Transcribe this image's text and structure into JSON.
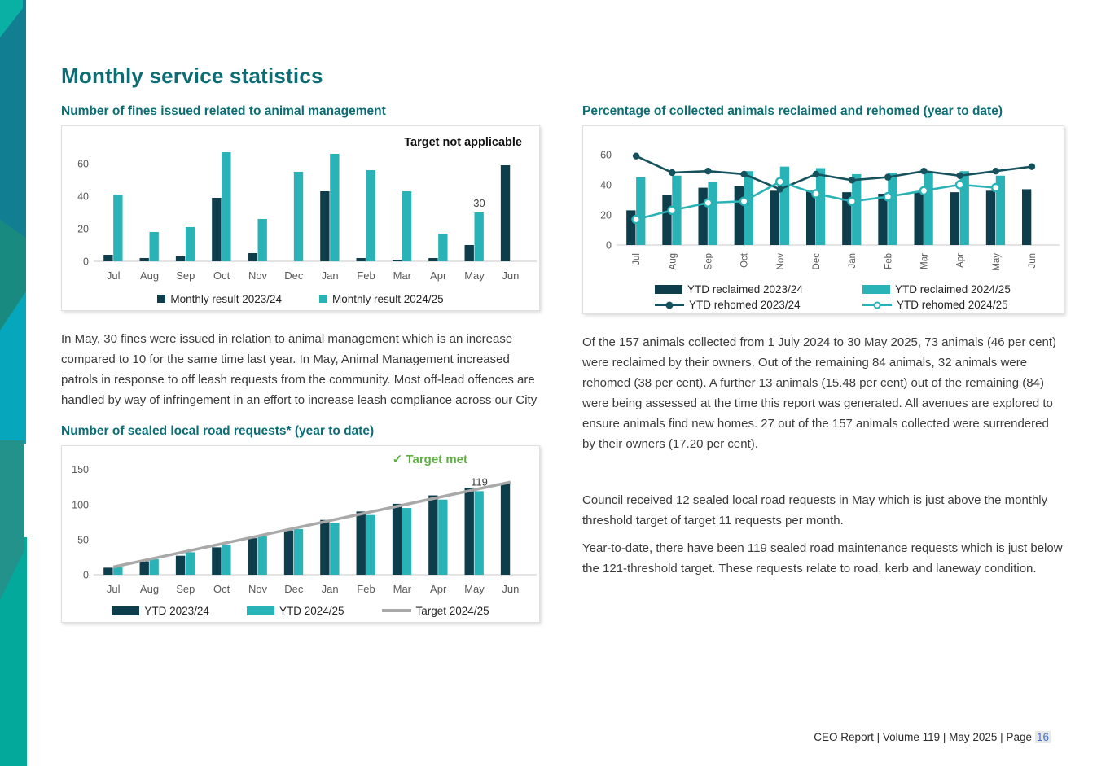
{
  "page": {
    "title": "Monthly service statistics",
    "footer": {
      "prefix": "CEO Report | Volume 119 | May 2025 | Page",
      "page_number": "16"
    }
  },
  "theme": {
    "dark": "#0E3E4B",
    "teal": "#2AB3B7",
    "dark_line": "#15525E",
    "gray_line": "#A9A9A9",
    "heading": "#0C6D75",
    "green": "#5DAF3F",
    "tick_text": "#595959",
    "body_text": "#3B3B3B",
    "page_number_color": "#4472C4"
  },
  "paragraphs": {
    "fines": "In May, 30 fines were issued in relation to animal management which is an increase compared to 10 for the same time last year. In May, Animal Management increased patrols in response to off leash requests from the community. Most off-lead offences are handled by way of infringement in an effort to increase leash compliance across our City",
    "animals": "Of the 157 animals collected from 1 July 2024 to 30 May 2025, 73 animals (46 per cent) were reclaimed by their owners. Out of the remaining 84 animals, 32 animals were rehomed (38 per cent). A further 13 animals (15.48 per cent) out of the remaining (84) were being assessed at the time this report was generated. All avenues are explored to ensure animals find new homes. 27 out of the 157 animals collected were surrendered by their owners (17.20 per cent).",
    "roads_1": "Council received 12 sealed local road requests in May which is just above the monthly threshold target of target 11 requests per month.",
    "roads_2": "Year-to-date, there have been 119 sealed road maintenance requests which is just below the 121-threshold target. These requests relate to road, kerb and laneway condition."
  },
  "chart_data": [
    {
      "id": "fines",
      "type": "bar",
      "title": "Number of fines issued related to animal management",
      "annotation": "Target not applicable",
      "categories": [
        "Jul",
        "Aug",
        "Sep",
        "Oct",
        "Nov",
        "Dec",
        "Jan",
        "Feb",
        "Mar",
        "Apr",
        "May",
        "Jun"
      ],
      "series": [
        {
          "name": "Monthly result 2023/24",
          "type": "bar",
          "color_key": "dark",
          "values": [
            4,
            2,
            3,
            39,
            5,
            0,
            43,
            2,
            1,
            2,
            10,
            59
          ]
        },
        {
          "name": "Monthly result 2024/25",
          "type": "bar",
          "color_key": "teal",
          "values": [
            41,
            18,
            21,
            67,
            26,
            55,
            66,
            56,
            43,
            17,
            30,
            null
          ]
        }
      ],
      "yticks": [
        0,
        20,
        40,
        60
      ],
      "ymax": 72,
      "grid": false,
      "legend_position": "bottom",
      "point_labels": [
        {
          "series": 1,
          "index": 10,
          "text": "30"
        }
      ]
    },
    {
      "id": "animals",
      "type": "bar+line",
      "title": "Percentage of collected animals reclaimed and rehomed (year to date)",
      "annotation": "",
      "categories": [
        "Jul",
        "Aug",
        "Sep",
        "Oct",
        "Nov",
        "Dec",
        "Jan",
        "Feb",
        "Mar",
        "Apr",
        "May",
        "Jun"
      ],
      "series": [
        {
          "name": "YTD  reclaimed 2023/24",
          "type": "bar",
          "color_key": "dark",
          "values": [
            23,
            33,
            38,
            39,
            36,
            36,
            35,
            34,
            35,
            35,
            36,
            37
          ]
        },
        {
          "name": "YTD  reclaimed 2024/25",
          "type": "bar",
          "color_key": "teal",
          "values": [
            45,
            46,
            42,
            49,
            52,
            51,
            47,
            48,
            48,
            49,
            46,
            null
          ]
        },
        {
          "name": "YTD  rehomed 2023/24",
          "type": "line",
          "marker": "filled",
          "color_key": "dark_line",
          "values": [
            59,
            48,
            49,
            47,
            37,
            47,
            43,
            45,
            49,
            46,
            49,
            52
          ]
        },
        {
          "name": "YTD  rehomed 2024/25",
          "type": "line",
          "marker": "open",
          "color_key": "teal",
          "values": [
            17,
            23,
            28,
            29,
            42,
            34,
            29,
            32,
            36,
            40,
            38,
            null
          ]
        }
      ],
      "yticks": [
        0,
        20,
        40,
        60
      ],
      "ymax": 68,
      "grid": false,
      "legend_position": "bottom",
      "x_label_rotation": -90,
      "point_labels": []
    },
    {
      "id": "roads",
      "type": "bar+line",
      "title": "Number of sealed local road requests* (year to date)",
      "annotation": "✓ Target met",
      "categories": [
        "Jul",
        "Aug",
        "Sep",
        "Oct",
        "Nov",
        "Dec",
        "Jan",
        "Feb",
        "Mar",
        "Apr",
        "May",
        "Jun"
      ],
      "series": [
        {
          "name": "YTD  2023/24",
          "type": "bar",
          "color_key": "dark",
          "values": [
            10,
            19,
            27,
            39,
            52,
            63,
            78,
            90,
            101,
            113,
            124,
            130
          ]
        },
        {
          "name": "YTD  2024/25",
          "type": "bar",
          "color_key": "teal",
          "values": [
            11,
            22,
            32,
            43,
            55,
            65,
            74,
            85,
            95,
            107,
            119,
            null
          ]
        },
        {
          "name": "Target 2024/25",
          "type": "line",
          "marker": "none",
          "color_key": "gray_line",
          "values": [
            11,
            22,
            33,
            44,
            55,
            66,
            77,
            88,
            99,
            110,
            121,
            132
          ]
        }
      ],
      "yticks": [
        0,
        50,
        100,
        150
      ],
      "ymax": 160,
      "grid": false,
      "legend_position": "bottom",
      "point_labels": [
        {
          "series": 1,
          "index": 10,
          "text": "119"
        }
      ]
    }
  ]
}
